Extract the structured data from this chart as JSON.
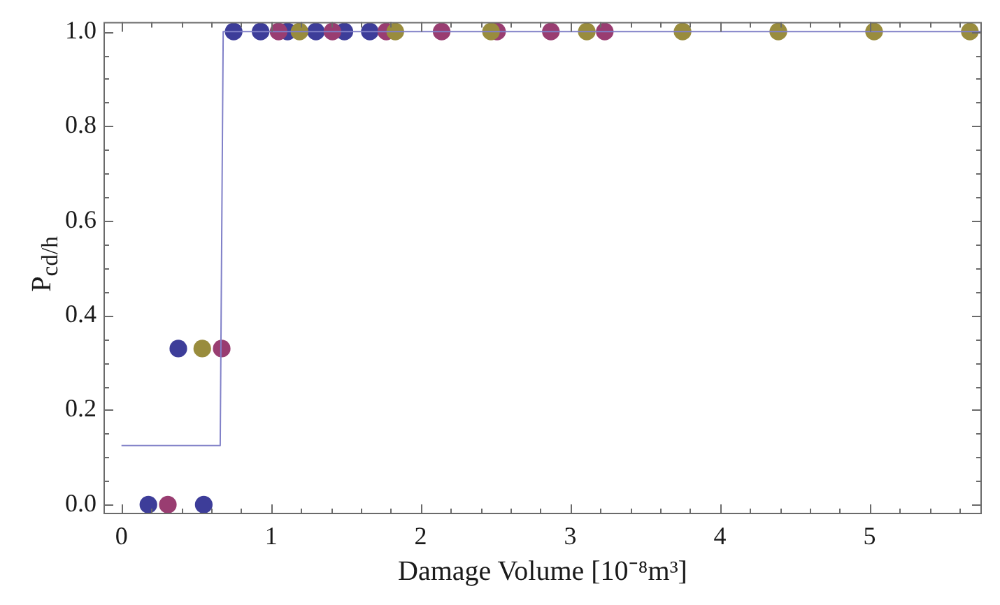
{
  "chart_data": {
    "type": "scatter",
    "xlabel": "Damage Volume [10⁻⁸m³]",
    "ylabel": "P$_{cd/h}$",
    "marker": "circle",
    "xlim": [
      -0.12,
      5.75
    ],
    "ylim": [
      -0.02,
      1.02
    ],
    "xticks": [
      0,
      {
        "value": 0.2,
        "label": null
      },
      {
        "value": 0.4,
        "label": null
      },
      {
        "value": 0.6,
        "label": null
      },
      {
        "value": 0.8,
        "label": null
      },
      1,
      {
        "value": 1.2,
        "label": null
      },
      {
        "value": 1.4,
        "label": null
      },
      {
        "value": 1.6,
        "label": null
      },
      {
        "value": 1.8,
        "label": null
      },
      2,
      {
        "value": 2.2,
        "label": null
      },
      {
        "value": 2.4,
        "label": null
      },
      {
        "value": 2.6,
        "label": null
      },
      {
        "value": 2.8,
        "label": null
      },
      3,
      {
        "value": 3.2,
        "label": null
      },
      {
        "value": 3.4,
        "label": null
      },
      {
        "value": 3.6,
        "label": null
      },
      {
        "value": 3.8,
        "label": null
      },
      4,
      {
        "value": 4.2,
        "label": null
      },
      {
        "value": 4.4,
        "label": null
      },
      {
        "value": 4.6,
        "label": null
      },
      {
        "value": 4.8,
        "label": null
      },
      5,
      {
        "value": 5.2,
        "label": null
      },
      {
        "value": 5.4,
        "label": null
      },
      {
        "value": 5.6,
        "label": null
      }
    ],
    "yticks": [
      {
        "value": 0,
        "label": "0.0"
      },
      {
        "value": 0.05,
        "label": null
      },
      {
        "value": 0.1,
        "label": null
      },
      {
        "value": 0.15,
        "label": null
      },
      {
        "value": 0.2,
        "label": "0.2"
      },
      {
        "value": 0.25,
        "label": null
      },
      {
        "value": 0.3,
        "label": null
      },
      {
        "value": 0.35,
        "label": null
      },
      {
        "value": 0.4,
        "label": "0.4"
      },
      {
        "value": 0.45,
        "label": null
      },
      {
        "value": 0.5,
        "label": null
      },
      {
        "value": 0.55,
        "label": null
      },
      {
        "value": 0.6,
        "label": "0.6"
      },
      {
        "value": 0.65,
        "label": null
      },
      {
        "value": 0.7,
        "label": null
      },
      {
        "value": 0.75,
        "label": null
      },
      {
        "value": 0.8,
        "label": "0.8"
      },
      {
        "value": 0.85,
        "label": null
      },
      {
        "value": 0.9,
        "label": null
      },
      {
        "value": 0.95,
        "label": null
      },
      {
        "value": 1,
        "label": "1.0"
      }
    ],
    "series": [
      {
        "color": "#3d3d99",
        "x": [
          0.18,
          0.55,
          0.38,
          0.75,
          0.93,
          1.11,
          1.3,
          1.49,
          1.66
        ],
        "values": [
          0,
          0,
          0.33,
          1,
          1,
          1,
          1,
          1,
          1
        ]
      },
      {
        "color": "#993d71",
        "x": [
          0.31,
          0.67,
          1.05,
          1.41,
          1.77,
          2.14,
          2.51,
          2.87,
          3.23
        ],
        "values": [
          0,
          0.33,
          1,
          1,
          1,
          1,
          1,
          1,
          1
        ]
      },
      {
        "color": "#998c3d",
        "x": [
          0.54,
          1.19,
          1.83,
          2.47,
          3.11,
          3.75,
          4.39,
          5.03,
          5.67
        ],
        "values": [
          0.33,
          1,
          1,
          1,
          1,
          1,
          1,
          1,
          1
        ]
      },
      {
        "type": "line",
        "color": "#8080c8",
        "marker": "none",
        "x": [
          0,
          0.66,
          0.68,
          5.75
        ],
        "values": [
          0.125,
          0.125,
          1,
          1
        ]
      }
    ]
  }
}
